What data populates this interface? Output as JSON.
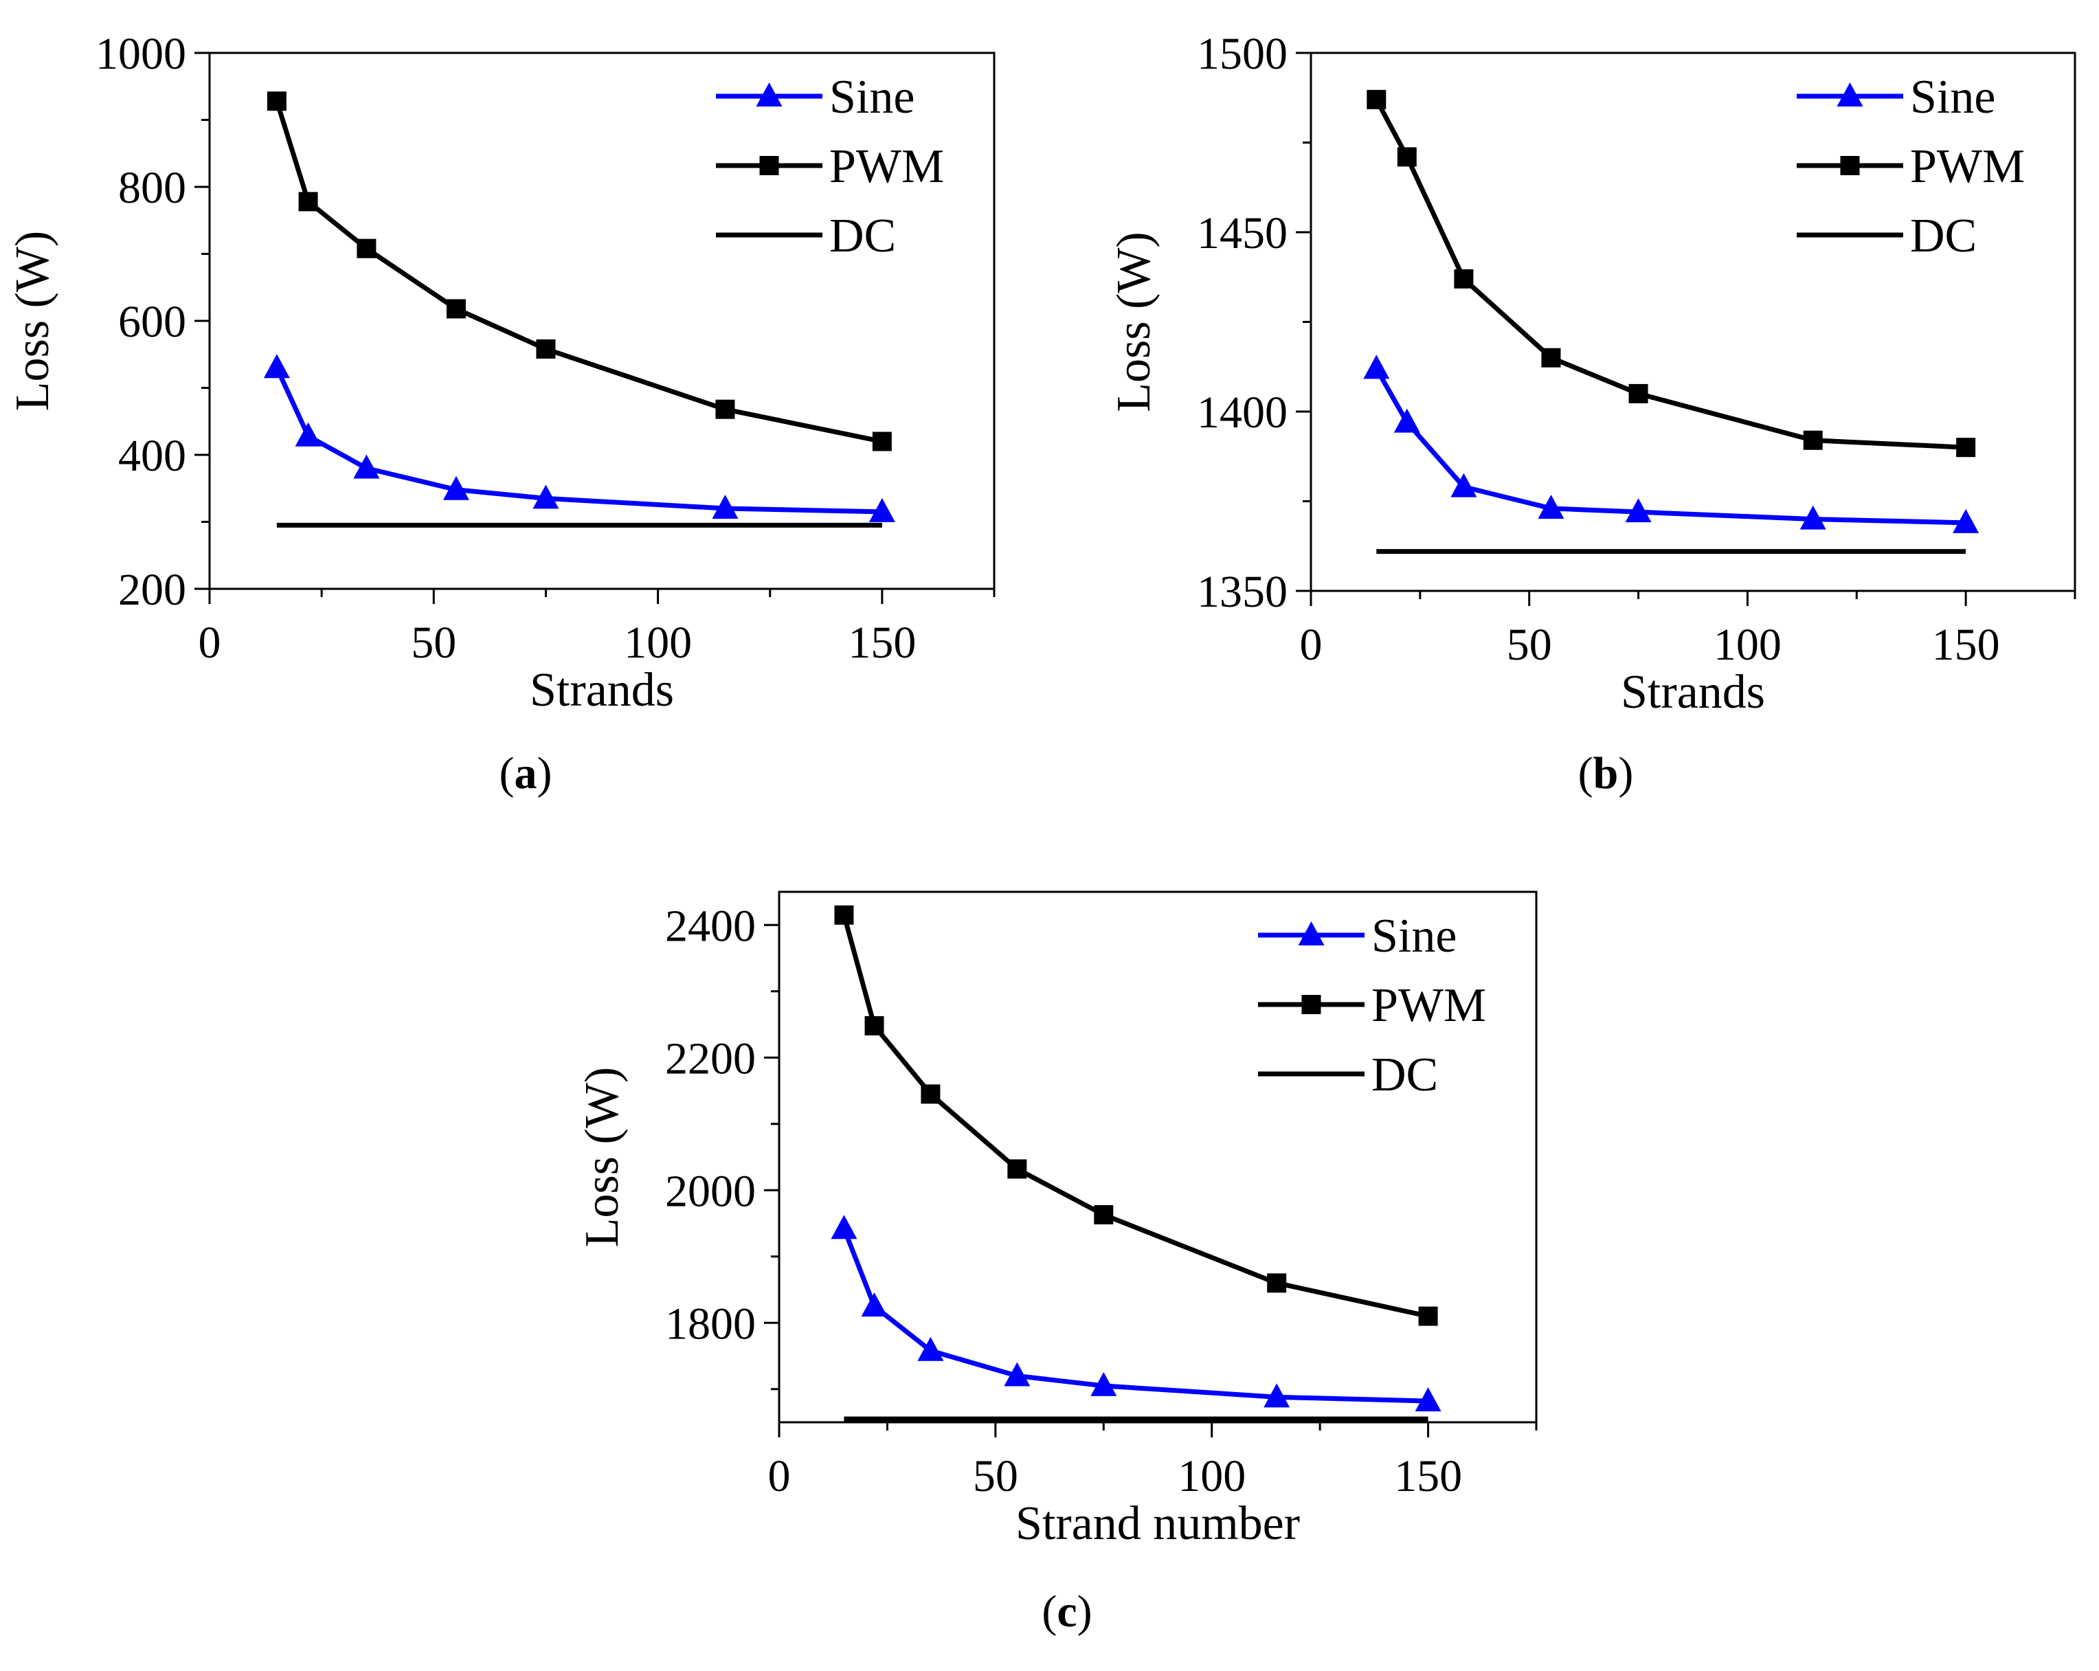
{
  "colors": {
    "sine": "#0000ff",
    "pwm": "#000000",
    "dc": "#000000",
    "axis": "#000000",
    "background": "#ffffff"
  },
  "chart_data": [
    {
      "type": "line",
      "panel_label": "a",
      "xlabel": "Strands",
      "ylabel": "Loss (W)",
      "xlim": [
        0,
        175
      ],
      "ylim": [
        200,
        1000
      ],
      "xticks": [
        0,
        50,
        100,
        150
      ],
      "yticks": [
        200,
        400,
        600,
        800,
        1000
      ],
      "xtick_labels": [
        "0",
        "50",
        "100",
        "150"
      ],
      "ytick_labels": [
        "200",
        "400",
        "600",
        "800",
        "1000"
      ],
      "legend_position": "top-right",
      "series": [
        {
          "name": "Sine",
          "marker": "triangle",
          "x": [
            15,
            22,
            35,
            55,
            75,
            115,
            150
          ],
          "y": [
            530,
            428,
            380,
            348,
            335,
            320,
            315
          ]
        },
        {
          "name": "PWM",
          "marker": "square",
          "x": [
            15,
            22,
            35,
            55,
            75,
            115,
            150
          ],
          "y": [
            928,
            778,
            708,
            618,
            558,
            468,
            420
          ]
        },
        {
          "name": "DC",
          "marker": "none",
          "x": [
            15,
            150
          ],
          "y": [
            295,
            295
          ]
        }
      ]
    },
    {
      "type": "line",
      "panel_label": "b",
      "xlabel": "Strands",
      "ylabel": "Loss (W)",
      "xlim": [
        0,
        175
      ],
      "ylim": [
        1350,
        1500
      ],
      "xticks": [
        0,
        50,
        100,
        150
      ],
      "yticks": [
        1350,
        1400,
        1450,
        1500
      ],
      "xtick_labels": [
        "0",
        "50",
        "100",
        "150"
      ],
      "ytick_labels": [
        "1350",
        "1400",
        "1450",
        "1500"
      ],
      "legend_position": "top-right",
      "series": [
        {
          "name": "Sine",
          "marker": "triangle",
          "x": [
            15,
            22,
            35,
            55,
            75,
            115,
            150
          ],
          "y": [
            1412,
            1397,
            1379,
            1373,
            1372,
            1370,
            1369
          ]
        },
        {
          "name": "PWM",
          "marker": "square",
          "x": [
            15,
            22,
            35,
            55,
            75,
            115,
            150
          ],
          "y": [
            1487,
            1471,
            1437,
            1415,
            1405,
            1392,
            1390
          ]
        },
        {
          "name": "DC",
          "marker": "none",
          "x": [
            15,
            150
          ],
          "y": [
            1361,
            1361
          ]
        }
      ]
    },
    {
      "type": "line",
      "panel_label": "c",
      "xlabel": "Strand number",
      "ylabel": "Loss (W)",
      "xlim": [
        0,
        175
      ],
      "ylim": [
        1650,
        2450
      ],
      "xticks": [
        0,
        50,
        100,
        150
      ],
      "yticks": [
        1800,
        2000,
        2200,
        2400
      ],
      "xtick_labels": [
        "0",
        "50",
        "100",
        "150"
      ],
      "ytick_labels": [
        "1800",
        "2000",
        "2200",
        "2400"
      ],
      "legend_position": "top-right",
      "series": [
        {
          "name": "Sine",
          "marker": "triangle",
          "x": [
            15,
            22,
            35,
            55,
            75,
            115,
            150
          ],
          "y": [
            1942,
            1825,
            1758,
            1720,
            1705,
            1688,
            1682
          ]
        },
        {
          "name": "PWM",
          "marker": "square",
          "x": [
            15,
            22,
            35,
            55,
            75,
            115,
            150
          ],
          "y": [
            2415,
            2248,
            2145,
            2032,
            1963,
            1860,
            1810
          ]
        },
        {
          "name": "DC",
          "marker": "none",
          "x": [
            15,
            150
          ],
          "y": [
            1655,
            1655
          ]
        }
      ]
    }
  ]
}
